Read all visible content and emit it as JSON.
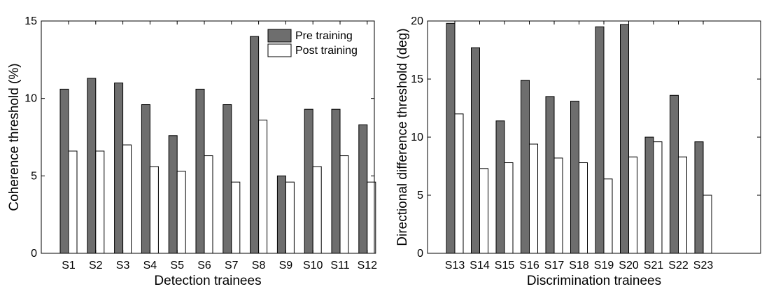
{
  "legend": {
    "pre_label": "Pre training",
    "post_label": "Post training"
  },
  "colors": {
    "pre": "#6e6e6e",
    "post": "#ffffff",
    "stroke": "#000000"
  },
  "chart_data": [
    {
      "type": "bar",
      "xlabel": "Detection trainees",
      "ylabel": "Coherence threshold (%)",
      "ylim": [
        0,
        15
      ],
      "yticks": [
        0,
        5,
        10,
        15
      ],
      "categories": [
        "S1",
        "S2",
        "S3",
        "S4",
        "S5",
        "S6",
        "S7",
        "S8",
        "S9",
        "S10",
        "S11",
        "S12"
      ],
      "series": [
        {
          "name": "Pre training",
          "values": [
            10.6,
            11.3,
            11.0,
            9.6,
            7.6,
            10.6,
            9.6,
            14.0,
            5.0,
            9.3,
            9.3,
            8.3
          ]
        },
        {
          "name": "Post training",
          "values": [
            6.6,
            6.6,
            7.0,
            5.6,
            5.3,
            6.3,
            4.6,
            8.6,
            4.6,
            5.6,
            6.3,
            4.6
          ]
        }
      ],
      "legend": "top-right",
      "grid": false
    },
    {
      "type": "bar",
      "xlabel": "Discrimination trainees",
      "ylabel": "Directional difference threshold (deg)",
      "ylim": [
        0,
        20
      ],
      "yticks": [
        0,
        5,
        10,
        15,
        20
      ],
      "categories": [
        "S13",
        "S14",
        "S15",
        "S16",
        "S17",
        "S18",
        "S19",
        "S20",
        "S21",
        "S22",
        "S23"
      ],
      "series": [
        {
          "name": "Pre training",
          "values": [
            19.8,
            17.7,
            11.4,
            14.9,
            13.5,
            13.1,
            19.5,
            19.7,
            10.0,
            13.6,
            9.6
          ]
        },
        {
          "name": "Post training",
          "values": [
            12.0,
            7.3,
            7.8,
            9.4,
            8.2,
            7.8,
            6.4,
            8.3,
            9.6,
            8.3,
            5.0
          ]
        }
      ],
      "grid": false
    }
  ]
}
